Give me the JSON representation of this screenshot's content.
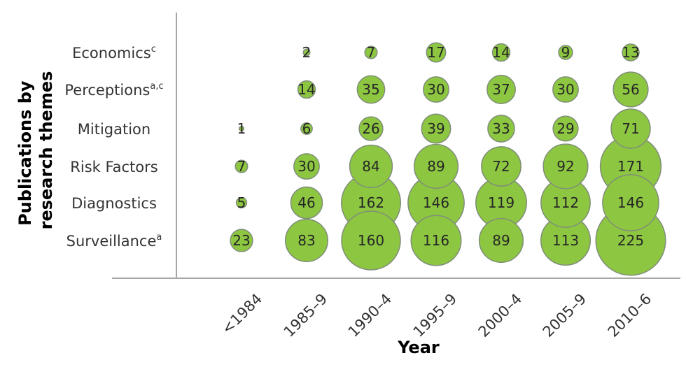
{
  "chart_data": {
    "type": "bubble",
    "title": "",
    "xlabel": "Year",
    "ylabel": "Publications by research themes",
    "ylabel_lines": [
      "Publications by",
      "research themes"
    ],
    "x_categories": [
      "<1984",
      "1985–9",
      "1990–4",
      "1995–9",
      "2000–4",
      "2005–9",
      "2010–6"
    ],
    "y_categories": [
      "Economics",
      "Perceptions",
      "Mitigation",
      "Risk Factors",
      "Diagnostics",
      "Surveillance"
    ],
    "y_superscripts": [
      "c",
      "a,c",
      "",
      "",
      "",
      "a"
    ],
    "bubble_color": "#8dc641",
    "values": [
      [
        null,
        2,
        7,
        17,
        14,
        9,
        13
      ],
      [
        null,
        14,
        35,
        30,
        37,
        30,
        56
      ],
      [
        1,
        6,
        26,
        39,
        33,
        29,
        71
      ],
      [
        7,
        30,
        84,
        89,
        72,
        92,
        171
      ],
      [
        5,
        46,
        162,
        146,
        119,
        112,
        146
      ],
      [
        23,
        83,
        160,
        116,
        89,
        113,
        225
      ]
    ]
  }
}
